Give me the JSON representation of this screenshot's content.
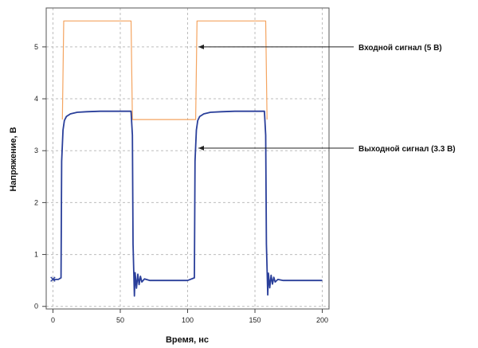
{
  "chart_data": {
    "type": "line",
    "xlabel": "Время, нс",
    "ylabel": "Напряжение, В",
    "xlim": [
      -5,
      205
    ],
    "ylim": [
      -0.05,
      5.75
    ],
    "x_ticks": [
      0,
      50,
      100,
      150,
      200
    ],
    "y_ticks": [
      0,
      1,
      2,
      3,
      4,
      5
    ],
    "grid": true,
    "series": [
      {
        "name": "Входной сигнал (5 В)",
        "color": "#f4a460",
        "x": [
          7,
          8,
          58,
          59,
          106,
          107,
          158,
          159
        ],
        "y": [
          3.6,
          5.5,
          5.5,
          3.6,
          3.6,
          5.5,
          5.5,
          3.6
        ]
      },
      {
        "name": "Выходной сигнал (3.3 В)",
        "color": "#2a3f9a",
        "x": [
          0,
          4,
          6,
          6.5,
          7.5,
          8.5,
          10,
          13,
          18,
          25,
          35,
          45,
          58,
          59,
          59.5,
          60.5,
          61,
          62,
          63,
          64,
          65,
          66,
          68,
          72,
          80,
          100,
          105,
          105.5,
          106.5,
          107.5,
          109,
          112,
          117,
          125,
          135,
          145,
          157,
          158,
          158.5,
          159.5,
          160,
          161,
          162,
          163,
          164,
          165,
          167,
          171,
          180,
          200
        ],
        "y": [
          0.52,
          0.52,
          0.55,
          2.8,
          3.4,
          3.58,
          3.66,
          3.71,
          3.74,
          3.75,
          3.76,
          3.76,
          3.76,
          3.3,
          1.2,
          0.2,
          0.65,
          0.35,
          0.62,
          0.42,
          0.58,
          0.47,
          0.53,
          0.5,
          0.5,
          0.5,
          0.55,
          2.8,
          3.4,
          3.58,
          3.66,
          3.71,
          3.74,
          3.75,
          3.76,
          3.76,
          3.76,
          3.3,
          1.2,
          0.22,
          0.64,
          0.36,
          0.6,
          0.43,
          0.56,
          0.47,
          0.52,
          0.5,
          0.5,
          0.5
        ]
      }
    ],
    "marker_point": {
      "x": 0,
      "y": 0.52,
      "symbol": "×"
    },
    "annotations": [
      {
        "text": "Входной сигнал (5 В)",
        "target_x": 108,
        "target_y": 5.0
      },
      {
        "text": "Выходной сигнал (3.3 В)",
        "target_x": 108,
        "target_y": 3.05
      }
    ]
  }
}
